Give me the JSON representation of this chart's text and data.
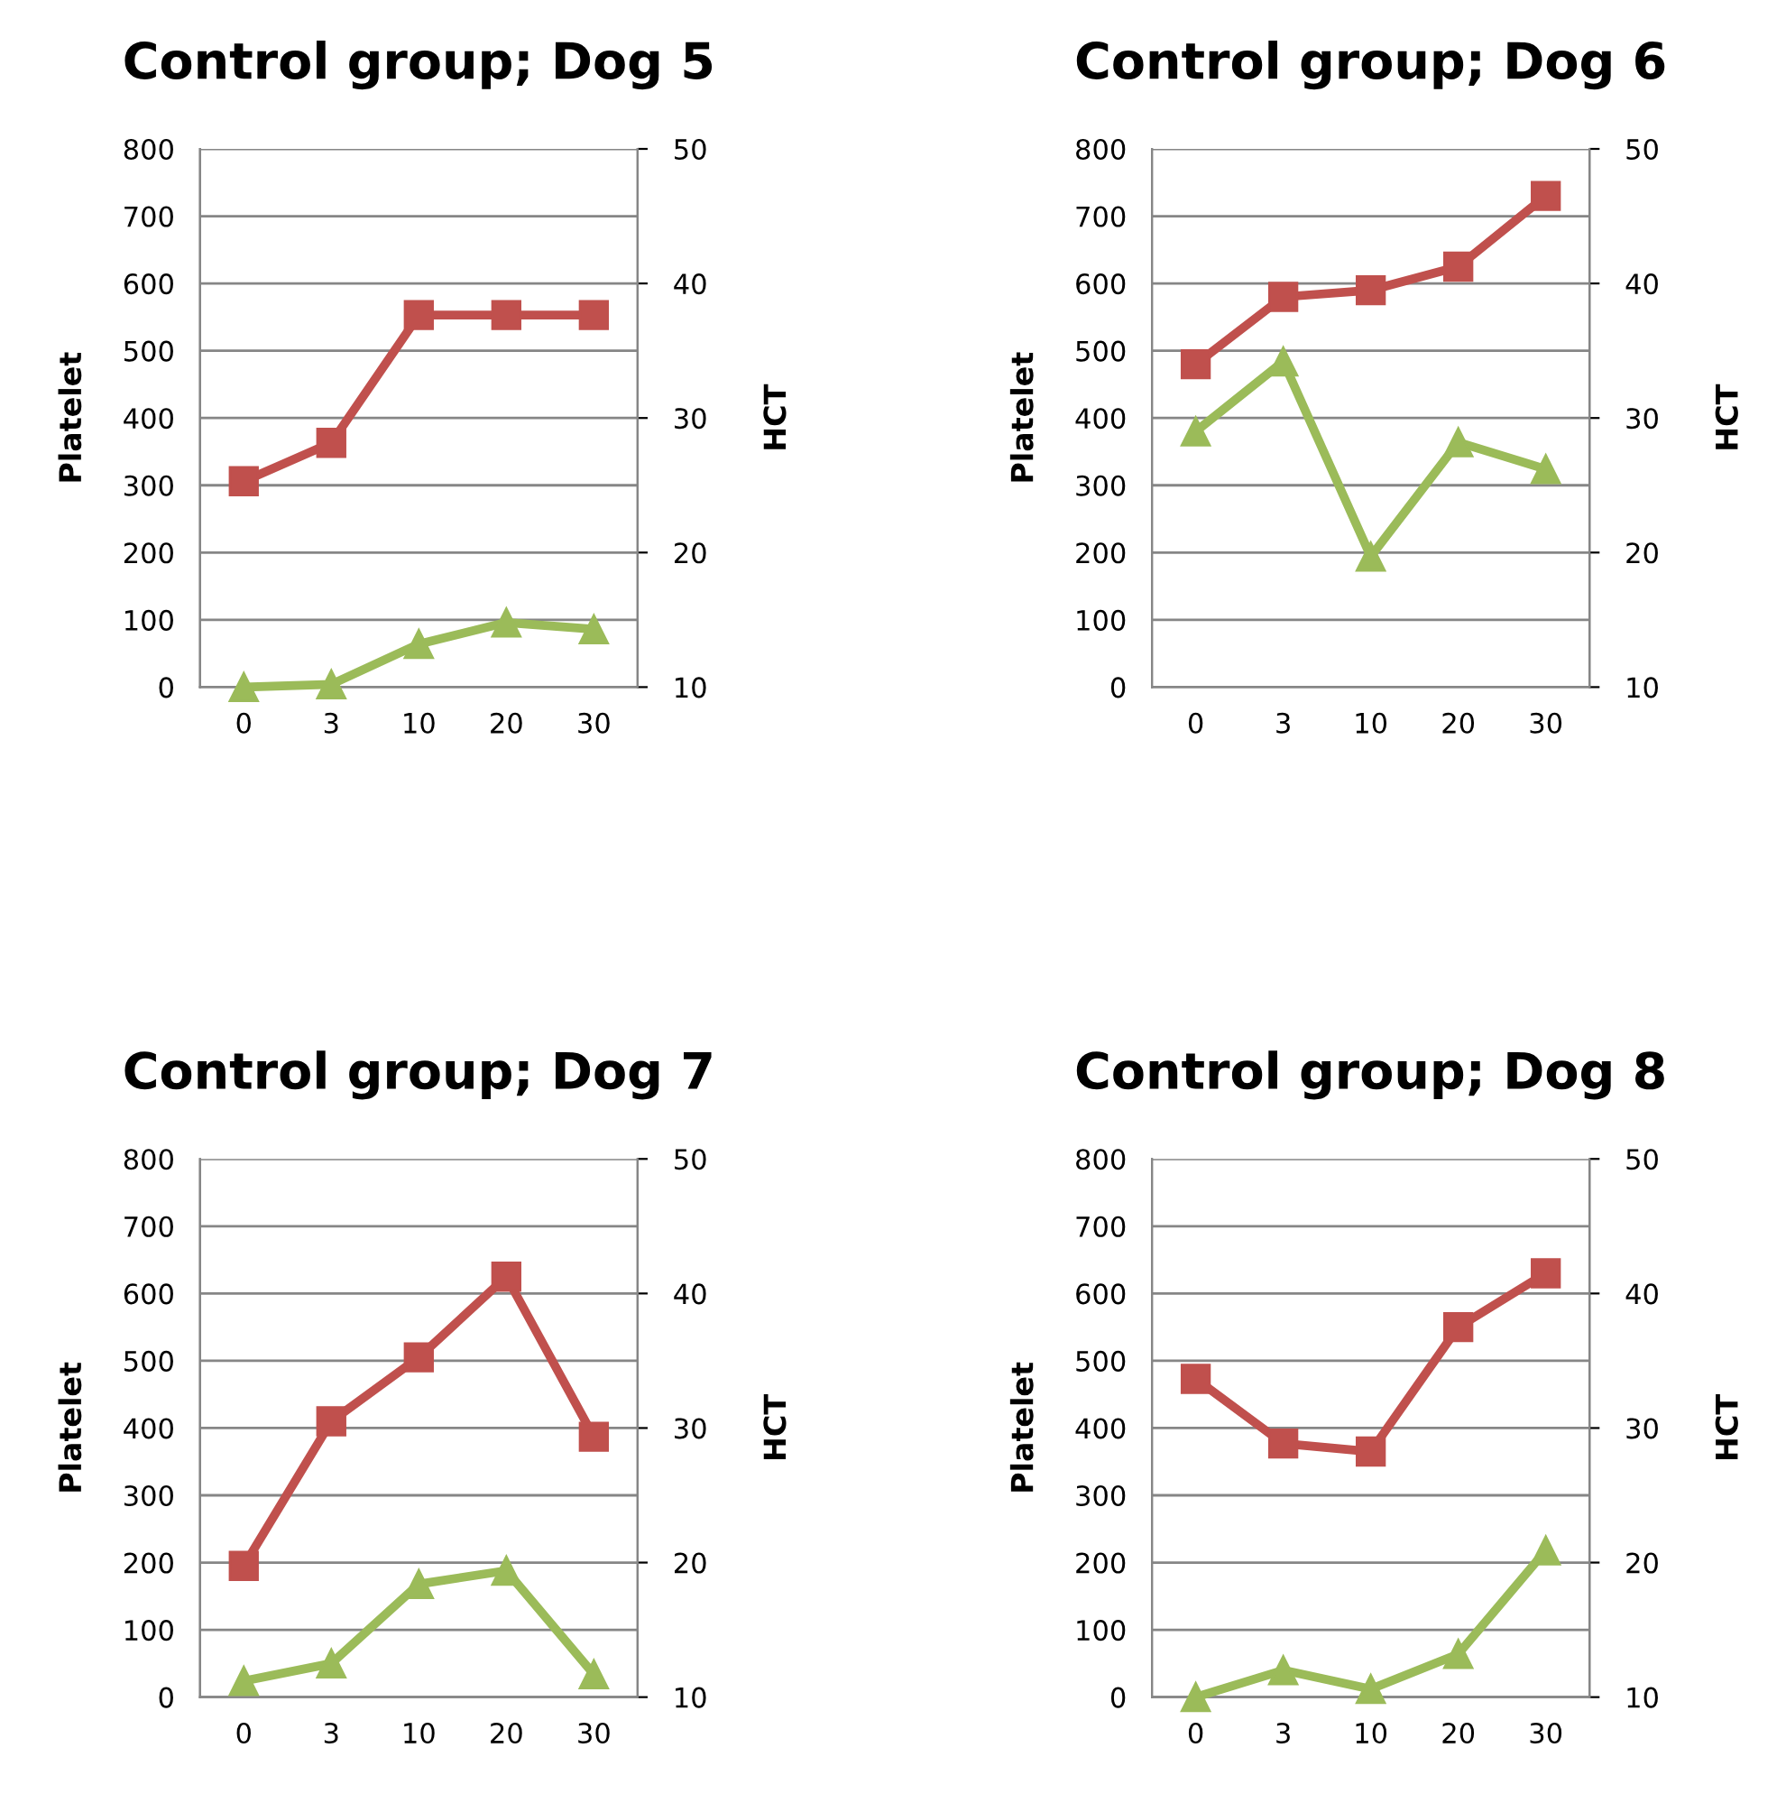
{
  "chart_data": [
    {
      "type": "line",
      "title": "Control group; Dog 5",
      "ylabel": "Platelet",
      "y2label": "HCT",
      "categories": [
        "0",
        "3",
        "10",
        "20",
        "30"
      ],
      "ylim": [
        0,
        800
      ],
      "yticks": [
        0,
        100,
        200,
        300,
        400,
        500,
        600,
        700,
        800
      ],
      "y2lim": [
        10,
        50
      ],
      "y2ticks": [
        10,
        20,
        30,
        40,
        50
      ],
      "grid": "y",
      "legend": false,
      "series": [
        {
          "color": "#c0504d",
          "marker": "square",
          "values": [
            306,
            363,
            553,
            553,
            553
          ]
        },
        {
          "color": "#9bbb59",
          "marker": "triangle",
          "axis": "y2",
          "values": [
            10.0,
            10.2,
            13.2,
            14.8,
            14.3
          ]
        }
      ]
    },
    {
      "type": "line",
      "title": "Control group; Dog 6",
      "ylabel": "Platelet",
      "y2label": "HCT",
      "categories": [
        "0",
        "3",
        "10",
        "20",
        "30"
      ],
      "ylim": [
        0,
        800
      ],
      "yticks": [
        0,
        100,
        200,
        300,
        400,
        500,
        600,
        700,
        800
      ],
      "y2lim": [
        10,
        50
      ],
      "y2ticks": [
        10,
        20,
        30,
        40,
        50
      ],
      "grid": "y",
      "legend": false,
      "series": [
        {
          "color": "#c0504d",
          "marker": "square",
          "values": [
            480,
            580,
            590,
            625,
            730
          ]
        },
        {
          "color": "#9bbb59",
          "marker": "triangle",
          "axis": "y2",
          "values": [
            29.0,
            34.2,
            19.7,
            28.2,
            26.2
          ]
        }
      ]
    },
    {
      "type": "line",
      "title": "Control group; Dog 7",
      "ylabel": "Platelet",
      "y2label": "HCT",
      "categories": [
        "0",
        "3",
        "10",
        "20",
        "30"
      ],
      "ylim": [
        0,
        800
      ],
      "yticks": [
        0,
        100,
        200,
        300,
        400,
        500,
        600,
        700,
        800
      ],
      "y2lim": [
        10,
        50
      ],
      "y2ticks": [
        10,
        20,
        30,
        40,
        50
      ],
      "grid": "y",
      "legend": false,
      "series": [
        {
          "color": "#c0504d",
          "marker": "square",
          "values": [
            195,
            410,
            505,
            625,
            387
          ]
        },
        {
          "color": "#9bbb59",
          "marker": "triangle",
          "axis": "y2",
          "values": [
            11.2,
            12.5,
            18.4,
            19.4,
            11.7
          ]
        }
      ]
    },
    {
      "type": "line",
      "title": "Control group; Dog 8",
      "ylabel": "Platelet",
      "y2label": "HCT",
      "categories": [
        "0",
        "3",
        "10",
        "20",
        "30"
      ],
      "ylim": [
        0,
        800
      ],
      "yticks": [
        0,
        100,
        200,
        300,
        400,
        500,
        600,
        700,
        800
      ],
      "y2lim": [
        10,
        50
      ],
      "y2ticks": [
        10,
        20,
        30,
        40,
        50
      ],
      "grid": "y",
      "legend": false,
      "series": [
        {
          "color": "#c0504d",
          "marker": "square",
          "values": [
            473,
            377,
            365,
            550,
            630
          ]
        },
        {
          "color": "#9bbb59",
          "marker": "triangle",
          "axis": "y2",
          "values": [
            10.0,
            12.0,
            10.6,
            13.2,
            20.9
          ]
        }
      ]
    }
  ]
}
